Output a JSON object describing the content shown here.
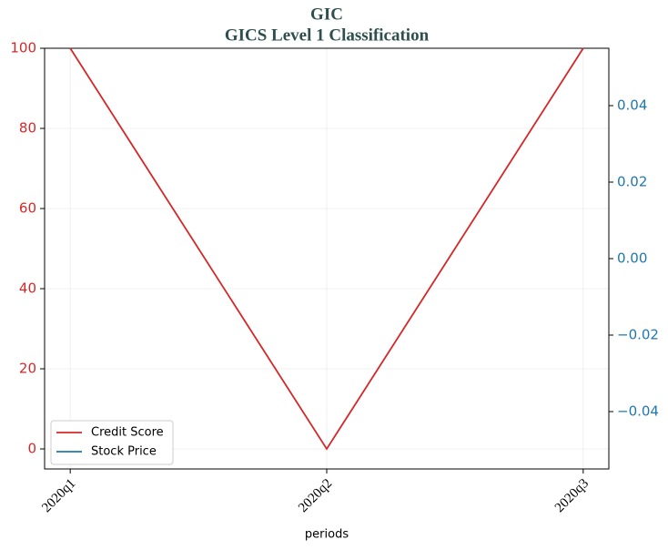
{
  "chart_data": {
    "type": "line",
    "title": "GIC",
    "subtitle": "GICS Level 1 Classification",
    "xlabel": "periods",
    "categories": [
      "2020q1",
      "2020q2",
      "2020q3"
    ],
    "series": [
      {
        "name": "Credit Score",
        "color": "#d62728",
        "values": [
          100,
          0,
          100
        ]
      },
      {
        "name": "Stock Price",
        "color": "#1f77b4",
        "values": [
          null,
          null,
          null
        ],
        "axis": "y2"
      }
    ],
    "ylim": [
      -5,
      100
    ],
    "yticks": [
      0,
      20,
      40,
      60,
      80,
      100
    ],
    "y2lim": [
      -0.055,
      0.055
    ],
    "y2ticks": [
      {
        "value": -0.04,
        "label": "−0.04"
      },
      {
        "value": -0.02,
        "label": "−0.02"
      },
      {
        "value": 0,
        "label": "0.00"
      },
      {
        "value": 0.02,
        "label": "0.02"
      },
      {
        "value": 0.04,
        "label": "0.04"
      }
    ],
    "grid": true,
    "legend": "lower left"
  }
}
